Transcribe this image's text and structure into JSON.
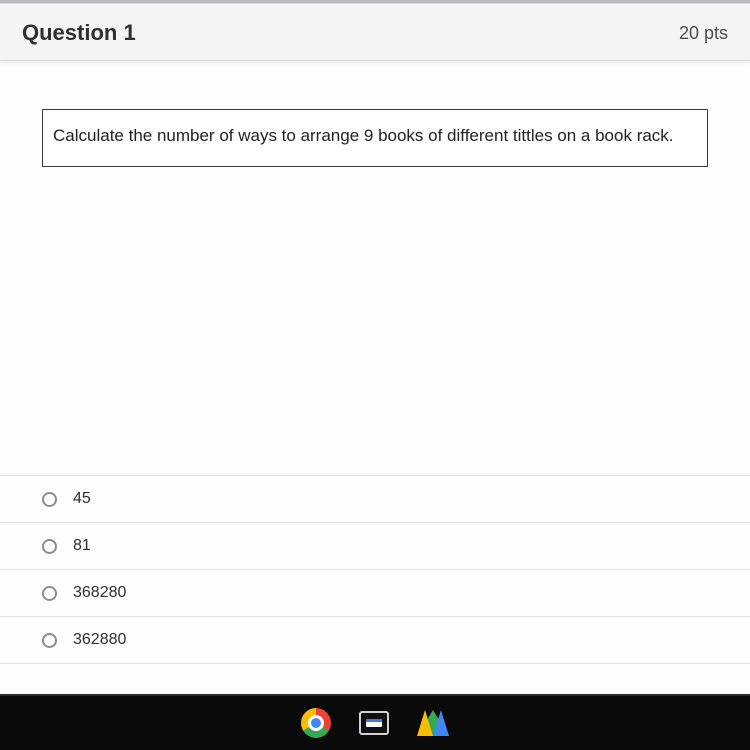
{
  "header": {
    "title": "Question 1",
    "points": "20 pts"
  },
  "prompt": "Calculate the number of ways to arrange 9 books of different tittles on a book rack.",
  "options": [
    {
      "label": "45"
    },
    {
      "label": "81"
    },
    {
      "label": "368280"
    },
    {
      "label": "362880"
    }
  ],
  "taskbar": {
    "items": [
      "chrome",
      "classroom",
      "drive"
    ]
  },
  "style": {
    "header_bg": "#f3f4f5",
    "body_bg": "#fdfdfd",
    "page_bg": "#eef0f2",
    "border": "#d5d8db",
    "option_border": "#e1e3e5",
    "text": "#2d2f31",
    "prompt_border": "#3a3a3a",
    "taskbar_bg": "#0a0a0a",
    "title_fontsize": 22,
    "pts_fontsize": 18,
    "prompt_fontsize": 17,
    "option_fontsize": 16
  }
}
